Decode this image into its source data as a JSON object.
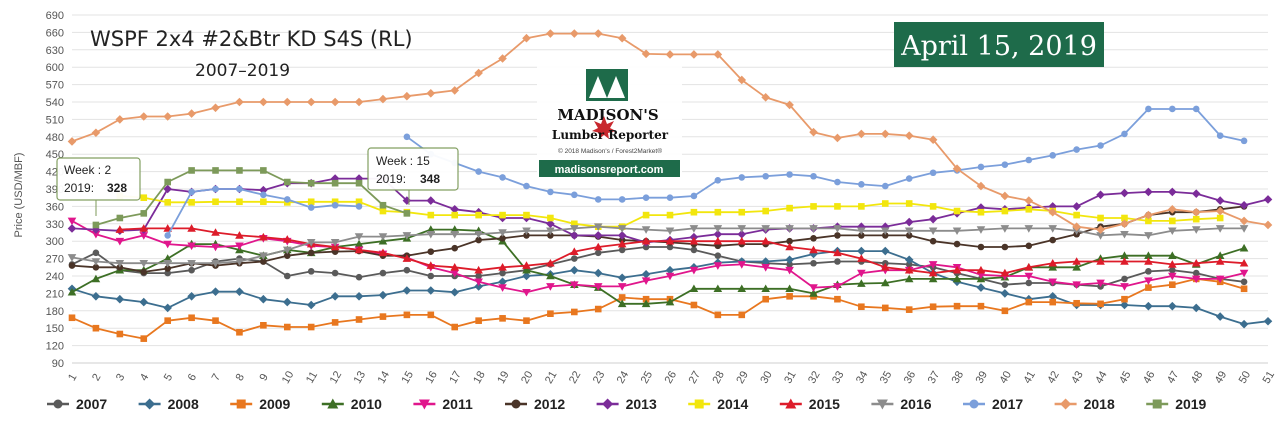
{
  "header": {
    "title": "WSPF 2x4 #2&Btr KD S4S (RL)",
    "subtitle": "2007–2019",
    "date_badge": "April 15, 2019",
    "date_badge_color": "#1e6b4a"
  },
  "logo": {
    "name": "MADISON'S",
    "tagline": "Lumber Reporter",
    "copyright": "© 2018 Madison's / Forest2Market®",
    "url": "madisonsreport.com",
    "brand_color": "#1e6b4a",
    "leaf_color": "#c8282e"
  },
  "tooltips": [
    {
      "week_label": "Week : 2",
      "series_label": "2019:",
      "value": "328"
    },
    {
      "week_label": "Week : 15",
      "series_label": "2019:",
      "value": "348"
    }
  ],
  "chart_data": {
    "type": "line",
    "title": "WSPF 2x4 #2&Btr KD S4S (RL)",
    "ylabel": "Price (USD/MBF)",
    "xlabel": "",
    "ylim": [
      90,
      690
    ],
    "yticks": [
      90,
      120,
      150,
      180,
      210,
      240,
      270,
      300,
      330,
      360,
      390,
      420,
      450,
      480,
      510,
      540,
      570,
      600,
      630,
      660,
      690
    ],
    "x": [
      1,
      2,
      3,
      4,
      5,
      6,
      7,
      8,
      9,
      10,
      11,
      12,
      13,
      14,
      15,
      16,
      17,
      18,
      19,
      20,
      21,
      22,
      23,
      24,
      25,
      26,
      27,
      28,
      29,
      30,
      31,
      32,
      33,
      34,
      35,
      36,
      37,
      38,
      39,
      40,
      41,
      42,
      43,
      44,
      45,
      46,
      47,
      48,
      49,
      50,
      51
    ],
    "grid": true,
    "legend_position": "bottom",
    "series": [
      {
        "name": "2007",
        "color": "#5a5a5a",
        "marker": "circle",
        "start": 1,
        "values": [
          260,
          280,
          250,
          245,
          245,
          250,
          265,
          270,
          265,
          240,
          248,
          245,
          238,
          245,
          250,
          240,
          240,
          240,
          245,
          250,
          260,
          270,
          280,
          285,
          290,
          290,
          285,
          275,
          265,
          262,
          260,
          262,
          265,
          265,
          262,
          260,
          255,
          245,
          235,
          225,
          228,
          228,
          225,
          222,
          235,
          248,
          250,
          245,
          235,
          230,
          null
        ]
      },
      {
        "name": "2008",
        "color": "#3c6e8f",
        "marker": "diamond",
        "start": 1,
        "values": [
          218,
          205,
          200,
          195,
          185,
          205,
          213,
          213,
          200,
          195,
          190,
          205,
          205,
          207,
          215,
          215,
          212,
          222,
          230,
          240,
          243,
          250,
          245,
          237,
          243,
          250,
          255,
          263,
          265,
          265,
          268,
          278,
          283,
          283,
          283,
          268,
          245,
          230,
          220,
          210,
          200,
          205,
          190,
          190,
          190,
          188,
          188,
          185,
          170,
          157,
          162
        ]
      },
      {
        "name": "2009",
        "color": "#e8771f",
        "marker": "square",
        "start": 1,
        "values": [
          168,
          150,
          140,
          132,
          163,
          168,
          163,
          143,
          155,
          152,
          152,
          160,
          165,
          170,
          173,
          173,
          152,
          163,
          167,
          163,
          175,
          178,
          183,
          203,
          200,
          200,
          190,
          173,
          173,
          200,
          205,
          205,
          200,
          187,
          185,
          182,
          187,
          188,
          188,
          180,
          195,
          195,
          193,
          192,
          200,
          220,
          225,
          235,
          230,
          218,
          null
        ]
      },
      {
        "name": "2010",
        "color": "#3d6f25",
        "marker": "triangle",
        "start": 1,
        "values": [
          212,
          235,
          250,
          250,
          270,
          295,
          295,
          285,
          275,
          285,
          280,
          290,
          295,
          300,
          305,
          320,
          320,
          318,
          300,
          250,
          240,
          225,
          220,
          192,
          192,
          195,
          218,
          218,
          218,
          218,
          218,
          210,
          225,
          227,
          228,
          235,
          235,
          235,
          235,
          238,
          255,
          255,
          255,
          270,
          275,
          275,
          275,
          260,
          275,
          288,
          null
        ]
      },
      {
        "name": "2011",
        "color": "#e0168c",
        "marker": "triangle-down",
        "start": 1,
        "values": [
          335,
          312,
          300,
          310,
          295,
          292,
          290,
          292,
          305,
          300,
          292,
          290,
          285,
          278,
          272,
          255,
          245,
          230,
          220,
          212,
          222,
          225,
          222,
          222,
          232,
          240,
          250,
          258,
          260,
          255,
          250,
          220,
          222,
          245,
          250,
          250,
          260,
          255,
          242,
          240,
          240,
          230,
          225,
          228,
          222,
          232,
          240,
          235,
          235,
          245,
          null
        ]
      },
      {
        "name": "2012",
        "color": "#4a3428",
        "marker": "circle",
        "start": 1,
        "values": [
          258,
          255,
          255,
          247,
          253,
          262,
          258,
          262,
          265,
          275,
          280,
          282,
          283,
          275,
          275,
          282,
          288,
          302,
          305,
          310,
          310,
          310,
          308,
          302,
          300,
          298,
          295,
          292,
          295,
          295,
          300,
          305,
          310,
          310,
          310,
          310,
          300,
          295,
          290,
          290,
          292,
          302,
          312,
          325,
          330,
          345,
          350,
          350,
          355,
          360,
          null
        ]
      },
      {
        "name": "2013",
        "color": "#7b2c99",
        "marker": "diamond",
        "start": 1,
        "values": [
          322,
          320,
          318,
          320,
          390,
          385,
          390,
          390,
          388,
          400,
          400,
          408,
          408,
          408,
          370,
          370,
          355,
          350,
          340,
          340,
          330,
          310,
          310,
          310,
          298,
          302,
          307,
          312,
          312,
          320,
          322,
          322,
          325,
          325,
          325,
          333,
          338,
          348,
          358,
          355,
          358,
          360,
          360,
          380,
          383,
          385,
          385,
          382,
          370,
          362,
          372
        ]
      },
      {
        "name": "2014",
        "color": "#f2e60d",
        "marker": "square",
        "start": 1,
        "values": [
          null,
          null,
          378,
          375,
          367,
          367,
          368,
          368,
          368,
          367,
          368,
          368,
          368,
          352,
          350,
          345,
          345,
          345,
          345,
          345,
          340,
          330,
          325,
          325,
          345,
          345,
          350,
          350,
          350,
          352,
          357,
          360,
          360,
          360,
          365,
          365,
          360,
          352,
          350,
          352,
          355,
          352,
          345,
          340,
          340,
          335,
          335,
          338,
          340,
          null,
          null
        ]
      },
      {
        "name": "2015",
        "color": "#dd1c2a",
        "marker": "triangle",
        "start": 1,
        "values": [
          null,
          null,
          320,
          322,
          322,
          322,
          315,
          310,
          307,
          303,
          295,
          290,
          285,
          280,
          270,
          258,
          255,
          250,
          255,
          258,
          262,
          282,
          290,
          295,
          300,
          300,
          300,
          300,
          300,
          300,
          290,
          285,
          280,
          270,
          255,
          250,
          245,
          250,
          250,
          245,
          255,
          262,
          265,
          265,
          265,
          265,
          260,
          262,
          265,
          262,
          null
        ]
      },
      {
        "name": "2016",
        "color": "#8c8c8c",
        "marker": "triangle-down",
        "start": 1,
        "values": [
          272,
          265,
          262,
          262,
          262,
          262,
          262,
          265,
          275,
          285,
          298,
          298,
          308,
          308,
          310,
          312,
          312,
          312,
          315,
          318,
          318,
          322,
          325,
          322,
          320,
          318,
          322,
          322,
          322,
          322,
          322,
          322,
          322,
          318,
          318,
          318,
          318,
          318,
          320,
          322,
          322,
          322,
          318,
          310,
          312,
          310,
          318,
          320,
          322,
          322,
          null
        ]
      },
      {
        "name": "2017",
        "color": "#7b9fdb",
        "marker": "circle",
        "start": 1,
        "values": [
          null,
          null,
          null,
          null,
          310,
          385,
          390,
          390,
          380,
          372,
          358,
          362,
          360,
          null,
          480,
          450,
          435,
          420,
          410,
          395,
          385,
          380,
          372,
          372,
          375,
          375,
          378,
          405,
          410,
          412,
          415,
          412,
          402,
          398,
          395,
          408,
          418,
          422,
          428,
          432,
          440,
          448,
          458,
          465,
          485,
          528,
          528,
          528,
          482,
          473,
          null
        ]
      },
      {
        "name": "2018",
        "color": "#e89a6a",
        "marker": "diamond",
        "start": 1,
        "values": [
          472,
          487,
          510,
          515,
          515,
          520,
          530,
          540,
          540,
          540,
          540,
          540,
          540,
          545,
          550,
          555,
          560,
          590,
          615,
          650,
          658,
          658,
          658,
          650,
          623,
          622,
          622,
          622,
          578,
          548,
          535,
          488,
          478,
          485,
          485,
          482,
          475,
          425,
          395,
          378,
          370,
          350,
          325,
          320,
          330,
          345,
          355,
          350,
          352,
          335,
          328
        ]
      },
      {
        "name": "2019",
        "color": "#7d9a5a",
        "marker": "square",
        "start": 1,
        "values": [
          null,
          328,
          340,
          348,
          402,
          422,
          422,
          422,
          422,
          402,
          400,
          400,
          400,
          362,
          348,
          null,
          null,
          null,
          null,
          null,
          null,
          null,
          null,
          null,
          null,
          null,
          null,
          null,
          null,
          null,
          null,
          null,
          null,
          null,
          null,
          null,
          null,
          null,
          null,
          null,
          null,
          null,
          null,
          null,
          null,
          null,
          null,
          null,
          null,
          null,
          null
        ]
      }
    ]
  }
}
